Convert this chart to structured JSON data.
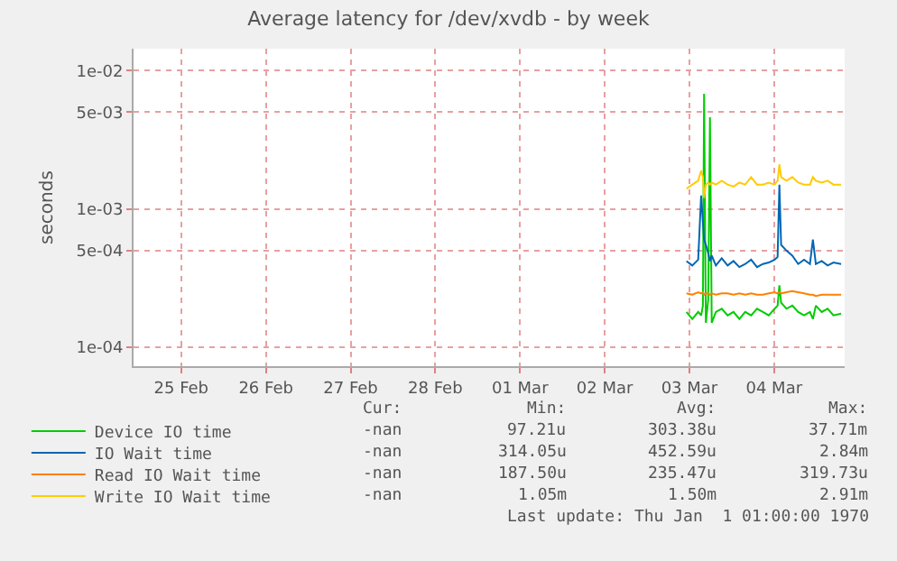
{
  "chart_data": {
    "type": "line",
    "title": "Average latency for /dev/xvdb - by week",
    "ylabel": "seconds",
    "log": "y",
    "grid": true,
    "legend": "bottom left",
    "marker": "none",
    "line_style": "solid",
    "x": [
      "--03-03T11:10",
      "--03-03T12:50",
      "--03-03T14:30",
      "--03-03T15:20",
      "--03-03T15:50",
      "--03-03T16:10",
      "--03-03T16:40",
      "--03-03T17:20",
      "--03-03T17:50",
      "--03-03T18:20",
      "--03-03T19:30",
      "--03-03T21:10",
      "--03-03T22:50",
      "--03-04T00:30",
      "--03-04T02:10",
      "--03-04T03:50",
      "--03-04T05:30",
      "--03-04T07:10",
      "--03-04T08:50",
      "--03-04T10:30",
      "--03-04T12:10",
      "--03-04T13:00",
      "--03-04T13:30",
      "--03-04T14:00",
      "--03-04T15:30",
      "--03-04T17:10",
      "--03-04T18:50",
      "--03-04T20:30",
      "--03-04T22:10",
      "--03-04T23:00",
      "--03-04T23:50",
      "--03-05T01:30",
      "--03-05T03:10",
      "--03-05T04:50",
      "--03-05T07:00"
    ],
    "series": [
      {
        "name": "Device IO time",
        "color": "#00cc00",
        "values": [
          0.00018,
          0.00016,
          0.00018,
          0.00017,
          0.0002,
          0.0068,
          0.00015,
          0.00022,
          0.0046,
          0.00015,
          0.00018,
          0.00019,
          0.00017,
          0.00018,
          0.00016,
          0.00018,
          0.00017,
          0.00019,
          0.00018,
          0.00017,
          0.00019,
          0.0002,
          0.00028,
          0.00021,
          0.00019,
          0.0002,
          0.00018,
          0.00017,
          0.00018,
          0.00016,
          0.0002,
          0.00018,
          0.00019,
          0.00017,
          0.000175
        ]
      },
      {
        "name": "IO Wait time",
        "color": "#0066b3",
        "values": [
          0.00042,
          0.00039,
          0.00043,
          0.00125,
          0.0008,
          0.0006,
          0.00055,
          0.00048,
          0.00042,
          0.00046,
          0.00039,
          0.00044,
          0.00039,
          0.00042,
          0.00038,
          0.0004,
          0.00043,
          0.00038,
          0.0004,
          0.00041,
          0.00043,
          0.00045,
          0.0015,
          0.00055,
          0.0005,
          0.00046,
          0.0004,
          0.00043,
          0.0004,
          0.0006,
          0.0004,
          0.00042,
          0.00039,
          0.00041,
          0.0004
        ]
      },
      {
        "name": "Read IO Wait time",
        "color": "#ff8000",
        "values": [
          0.000245,
          0.00024,
          0.00025,
          0.000245,
          0.00025,
          0.00024,
          0.000245,
          0.000245,
          0.00024,
          0.000245,
          0.00024,
          0.000245,
          0.000245,
          0.00024,
          0.000245,
          0.00024,
          0.000245,
          0.00024,
          0.00024,
          0.000245,
          0.00025,
          0.000245,
          0.00025,
          0.000245,
          0.00025,
          0.000255,
          0.00025,
          0.000245,
          0.00024,
          0.00024,
          0.000235,
          0.00024,
          0.00024,
          0.00024,
          0.00024
        ]
      },
      {
        "name": "Write IO Wait time",
        "color": "#ffcc00",
        "values": [
          0.0014,
          0.0015,
          0.0016,
          0.0019,
          0.0017,
          0.0012,
          0.0015,
          0.00155,
          0.0015,
          0.00155,
          0.0015,
          0.0016,
          0.0015,
          0.00145,
          0.00155,
          0.0015,
          0.0017,
          0.0015,
          0.0015,
          0.00155,
          0.0015,
          0.0016,
          0.0021,
          0.0017,
          0.0016,
          0.0017,
          0.00155,
          0.0015,
          0.0015,
          0.0017,
          0.0016,
          0.00155,
          0.0016,
          0.0015,
          0.0015
        ]
      }
    ],
    "xlim": [
      "--02-24T22:30",
      "--03-05T08:00"
    ],
    "xticks": [
      {
        "value": "--02-25T12:00",
        "label": "25 Feb"
      },
      {
        "value": "--02-26T12:00",
        "label": "26 Feb"
      },
      {
        "value": "--02-27T12:00",
        "label": "27 Feb"
      },
      {
        "value": "--02-28T12:00",
        "label": "28 Feb"
      },
      {
        "value": "--03-01T12:00",
        "label": "01 Mar"
      },
      {
        "value": "--03-02T12:00",
        "label": "02 Mar"
      },
      {
        "value": "--03-03T12:00",
        "label": "03 Mar"
      },
      {
        "value": "--03-04T12:00",
        "label": "04 Mar"
      }
    ],
    "ylim": [
      7.3e-05,
      0.0144
    ],
    "yticks": [
      {
        "value": 0.0001,
        "label": "1e-04"
      },
      {
        "value": 0.0005,
        "label": "5e-04"
      },
      {
        "value": 0.001,
        "label": "1e-03"
      },
      {
        "value": 0.005,
        "label": "5e-03"
      },
      {
        "value": 0.01,
        "label": "1e-02"
      }
    ],
    "annotations": [
      "Cur:",
      "Min:",
      "Avg:",
      "Max:",
      "-nan",
      "97.21u",
      "303.38u",
      "37.71m",
      "-nan",
      "314.05u",
      "452.59u",
      "2.84m",
      "-nan",
      "187.50u",
      "235.47u",
      "319.73u",
      "-nan",
      "1.05m",
      "1.50m",
      "2.91m",
      "Last update: Thu Jan  1 01:00:00 1970"
    ]
  }
}
